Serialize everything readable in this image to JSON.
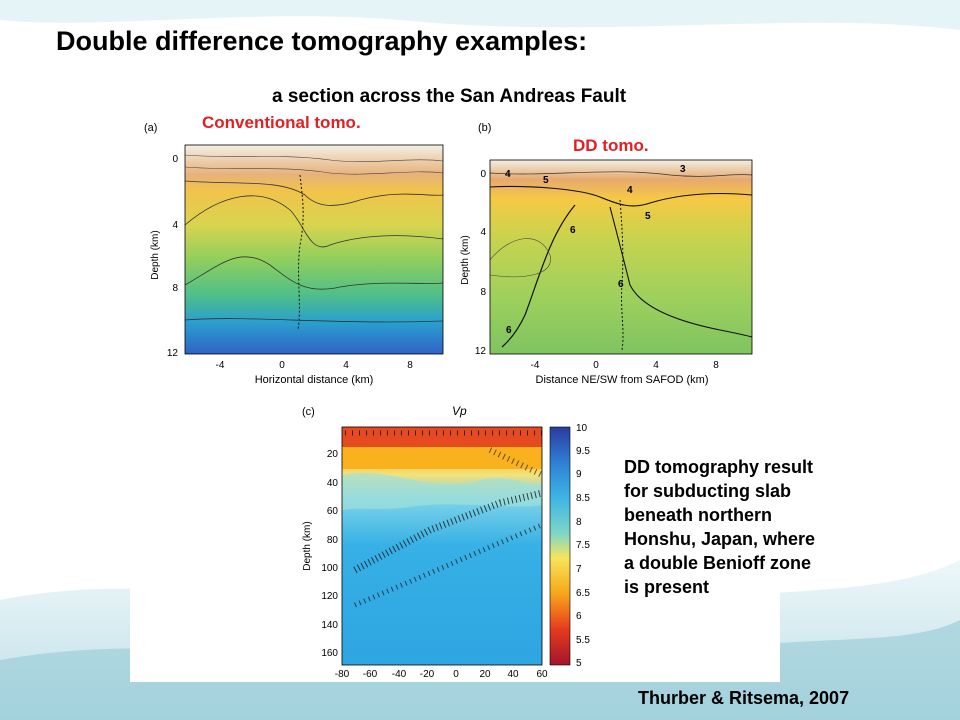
{
  "slide": {
    "title": "Double difference tomography examples:",
    "subtitle": "a section across the San Andreas Fault",
    "label_conventional": "Conventional tomo.",
    "label_dd": "DD tomo.",
    "description_lines": [
      "DD tomography result",
      "for subducting slab",
      "beneath northern",
      "Honshu, Japan, where",
      "a double Benioff zone",
      "is present"
    ],
    "citation": "Thurber & Ritsema, 2007",
    "colors": {
      "label_red": "#e41f22",
      "background_wave": "#bfe3ea"
    }
  },
  "figure": {
    "panel_a": {
      "letter": "(a)",
      "ylabel": "Depth (km)",
      "xlabel": "Horizontal distance (km)",
      "yticks": [
        "0",
        "4",
        "8",
        "12"
      ],
      "xticks": [
        "-4",
        "0",
        "4",
        "8"
      ]
    },
    "panel_b": {
      "letter": "(b)",
      "ylabel": "Depth (km)",
      "xlabel": "Distance NE/SW from SAFOD (km)",
      "yticks": [
        "0",
        "4",
        "8",
        "12"
      ],
      "xticks": [
        "-4",
        "0",
        "4",
        "8"
      ],
      "contour_labels": [
        "3",
        "4",
        "5",
        "4",
        "5",
        "6",
        "6",
        "6"
      ]
    },
    "panel_c": {
      "letter": "(c)",
      "ylabel": "Depth (km)",
      "title": "Vp",
      "yticks": [
        "20",
        "40",
        "60",
        "80",
        "100",
        "120",
        "140",
        "160"
      ],
      "xticks": [
        "-80",
        "-60",
        "-40",
        "-20",
        "0",
        "20",
        "40",
        "60"
      ],
      "colorbar_ticks": [
        "10",
        "9.5",
        "9",
        "8.5",
        "8",
        "7.5",
        "7",
        "6.5",
        "6",
        "5.5",
        "5"
      ]
    }
  }
}
